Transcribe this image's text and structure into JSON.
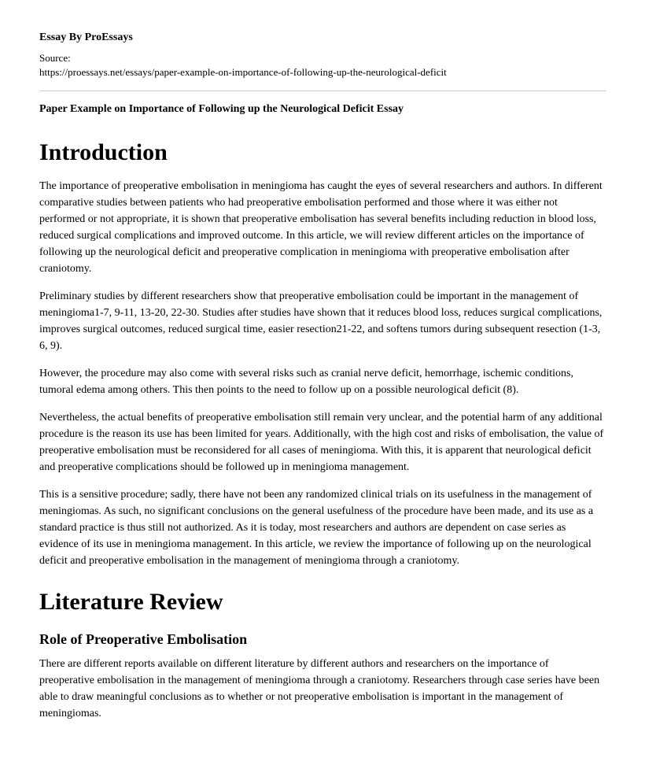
{
  "byline": "Essay By ProEssays",
  "source_label": "Source:",
  "source_url": "https://proessays.net/essays/paper-example-on-importance-of-following-up-the-neurological-deficit",
  "essay_title": "Paper Example on Importance of Following up the Neurological Deficit Essay",
  "sections": {
    "intro_heading": "Introduction",
    "intro_p1": "The importance of preoperative embolisation in meningioma has caught the eyes of several researchers and authors. In different comparative studies between patients who had preoperative embolisation performed and those where it was either not performed or not appropriate, it is shown that preoperative embolisation has several benefits including reduction in blood loss, reduced surgical complications and improved outcome. In this article, we will review different articles on the importance of following up the neurological deficit and preoperative complication in meningioma with preoperative embolisation after craniotomy.",
    "intro_p2": "Preliminary studies by different researchers show that preoperative embolisation could be important in the management of meningioma1-7, 9-11, 13-20, 22-30. Studies after studies have shown that it reduces blood loss, reduces surgical complications, improves surgical outcomes, reduced surgical time, easier resection21-22, and softens tumors during subsequent resection (1-3, 6, 9).",
    "intro_p3": "However, the procedure may also come with several risks such as cranial nerve deficit, hemorrhage, ischemic conditions, tumoral edema among others. This then points to the need to follow up on a possible neurological deficit (8).",
    "intro_p4": "Nevertheless, the actual benefits of preoperative embolisation still remain very unclear, and the potential harm of any additional procedure is the reason its use has been limited for years. Additionally, with the high cost and risks of embolisation, the value of preoperative embolisation must be reconsidered for all cases of meningioma. With this, it is apparent that neurological deficit and preoperative complications should be followed up in meningioma management.",
    "intro_p5": "This is a sensitive procedure; sadly, there have not been any randomized clinical trials on its usefulness in the management of meningiomas. As such, no significant conclusions on the general usefulness of the procedure have been made, and its use as a standard practice is thus still not authorized. As it is today, most researchers and authors are dependent on case series as evidence of its use in meningioma management. In this article, we review the importance of following up on the neurological deficit and preoperative embolisation in the management of meningioma through a craniotomy.",
    "litrev_heading": "Literature Review",
    "role_heading": "Role of Preoperative Embolisation",
    "role_p1": "There are different reports available on different literature by different authors and researchers on the importance of preoperative embolisation in the management of meningioma through a craniotomy. Researchers through case series have been able to draw meaningful conclusions as to whether or not preoperative embolisation is important in the management of meningiomas."
  },
  "colors": {
    "text": "#000000",
    "background": "#ffffff",
    "hr": "#cccccc"
  },
  "typography": {
    "body_font": "Georgia, serif",
    "h1_size": 30,
    "h2_size": 18,
    "body_size": 14,
    "line_height": 1.5
  }
}
